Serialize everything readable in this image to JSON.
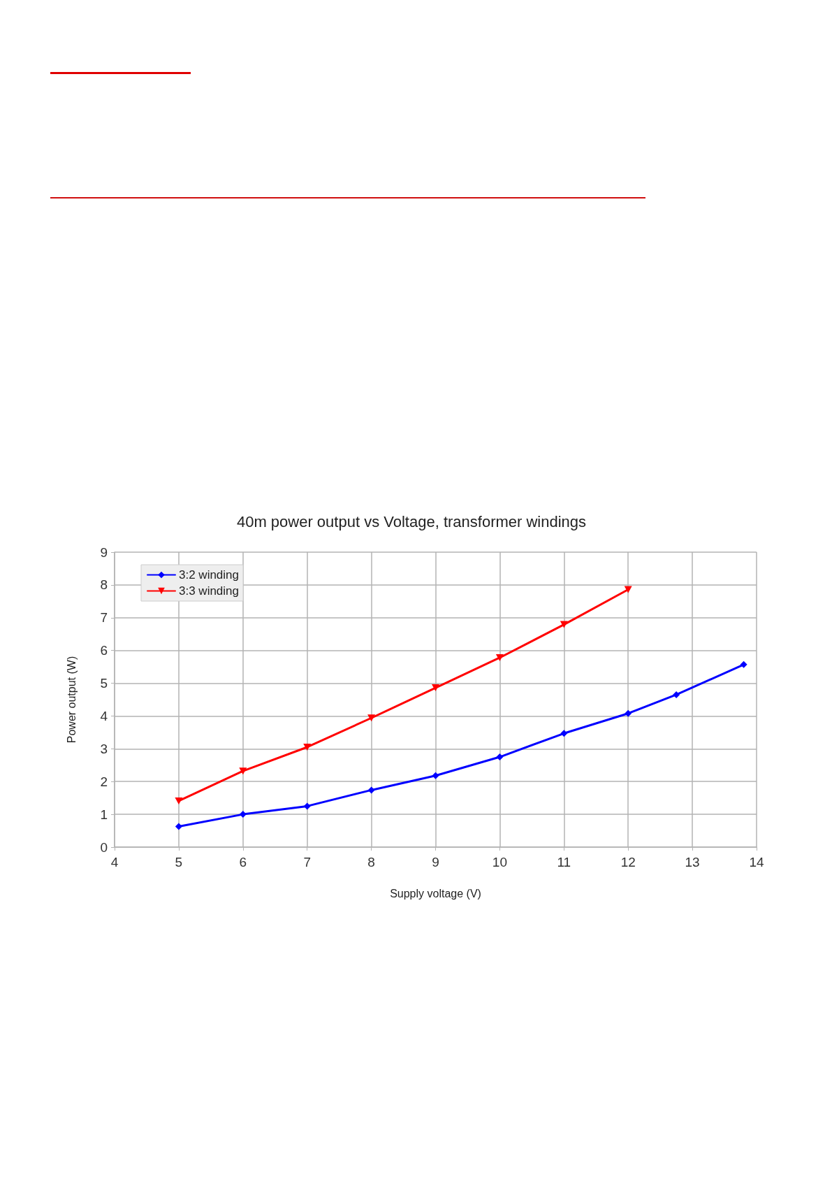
{
  "chart_data": {
    "type": "line",
    "title": "40m power output vs Voltage, transformer windings",
    "xlabel": "Supply voltage (V)",
    "ylabel": "Power output (W)",
    "series": [
      {
        "name": "3:2 winding",
        "color": "#0000ff",
        "marker": "diamond",
        "x": [
          5,
          6,
          7,
          8,
          9,
          10,
          11,
          12,
          12.75,
          13.8
        ],
        "values": [
          0.63,
          1.0,
          1.25,
          1.74,
          2.18,
          2.75,
          3.47,
          4.08,
          4.65,
          5.57
        ]
      },
      {
        "name": "3:3 winding",
        "color": "#ff0000",
        "marker": "triangle",
        "x": [
          5,
          6,
          7,
          8,
          9,
          10,
          11,
          12
        ],
        "values": [
          1.41,
          2.32,
          3.05,
          3.94,
          4.86,
          5.78,
          6.79,
          7.86
        ]
      }
    ],
    "xlim": [
      4,
      14
    ],
    "xticks": [
      4,
      5,
      6,
      7,
      8,
      9,
      10,
      11,
      12,
      13,
      14
    ],
    "ylim": [
      0,
      9
    ],
    "yticks": [
      0,
      1,
      2,
      3,
      4,
      5,
      6,
      7,
      8,
      9
    ],
    "grid": true,
    "legend": "top left",
    "line_style": "solid"
  }
}
